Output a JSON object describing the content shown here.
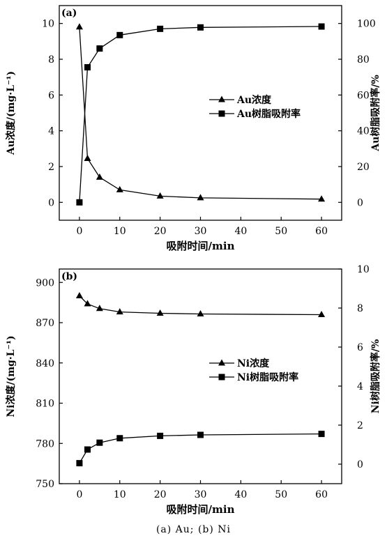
{
  "caption": "(a) Au; (b) Ni",
  "chart_data": [
    {
      "type": "line",
      "panel_label": "(a)",
      "xlabel": "吸附时间/min",
      "ylabel_left": "Au浓度/(mg·L⁻¹)",
      "ylabel_right": "Au树脂吸附率/%",
      "xlim": [
        -5,
        65
      ],
      "xticks": [
        0,
        10,
        20,
        30,
        40,
        50,
        60
      ],
      "ylim_left": [
        -1,
        11
      ],
      "yticks_left": [
        0,
        2,
        4,
        6,
        8,
        10
      ],
      "ylim_right": [
        -10,
        110
      ],
      "yticks_right": [
        0,
        20,
        40,
        60,
        80,
        100
      ],
      "legend_position": "center-right",
      "series": [
        {
          "name": "Au浓度",
          "marker": "triangle",
          "axis": "left",
          "x": [
            0,
            2,
            5,
            10,
            20,
            30,
            60
          ],
          "values": [
            9.8,
            2.45,
            1.4,
            0.7,
            0.35,
            0.25,
            0.18
          ]
        },
        {
          "name": "Au树脂吸附率",
          "marker": "square",
          "axis": "right",
          "x": [
            0,
            2,
            5,
            10,
            20,
            30,
            60
          ],
          "values": [
            0,
            75.5,
            86,
            93.5,
            97,
            97.8,
            98.3
          ]
        }
      ]
    },
    {
      "type": "line",
      "panel_label": "(b)",
      "xlabel": "吸附时间/min",
      "ylabel_left": "Ni浓度/(mg·L⁻¹)",
      "ylabel_right": "Ni树脂吸附率/%",
      "xlim": [
        -5,
        65
      ],
      "xticks": [
        0,
        10,
        20,
        30,
        40,
        50,
        60
      ],
      "ylim_left": [
        750,
        910
      ],
      "yticks_left": [
        750,
        780,
        810,
        840,
        870,
        900
      ],
      "ylim_right": [
        -1,
        10
      ],
      "yticks_right": [
        0,
        2,
        4,
        6,
        8,
        10
      ],
      "legend_position": "center-right",
      "series": [
        {
          "name": "Ni浓度",
          "marker": "triangle",
          "axis": "left",
          "x": [
            0,
            2,
            5,
            10,
            20,
            30,
            60
          ],
          "values": [
            890,
            884,
            880.5,
            878,
            877,
            876.5,
            876
          ]
        },
        {
          "name": "Ni树脂吸附率",
          "marker": "square",
          "axis": "right",
          "x": [
            0,
            2,
            5,
            10,
            20,
            30,
            60
          ],
          "values": [
            0.05,
            0.75,
            1.1,
            1.33,
            1.45,
            1.5,
            1.55
          ]
        }
      ]
    }
  ]
}
